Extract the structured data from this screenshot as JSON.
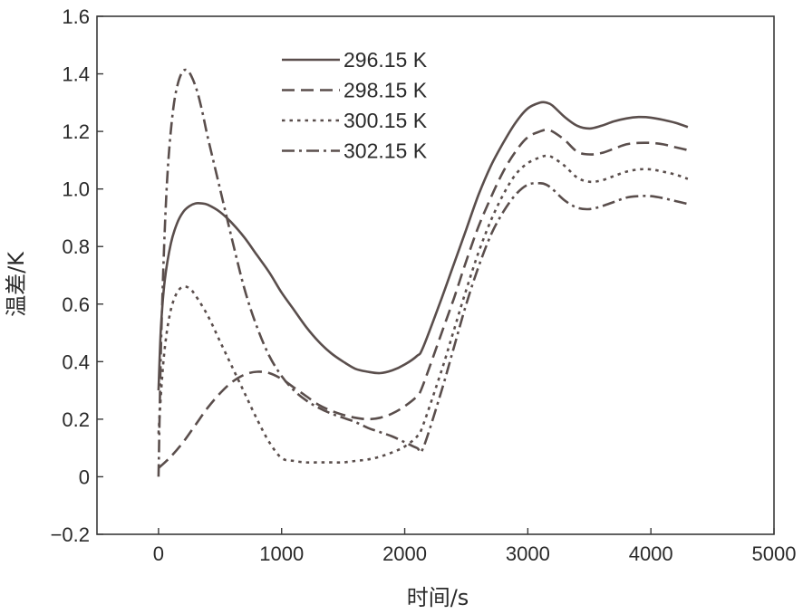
{
  "chart_data": {
    "type": "line",
    "xlabel": "时间/s",
    "ylabel": "温差/K",
    "xlim": [
      -500,
      5000
    ],
    "ylim": [
      -0.2,
      1.6
    ],
    "xticks": [
      0,
      1000,
      2000,
      3000,
      4000,
      5000
    ],
    "yticks": [
      -0.2,
      0,
      0.2,
      0.4,
      0.6,
      0.8,
      1.0,
      1.2,
      1.4,
      1.6
    ],
    "ytick_labels": [
      "−0.2",
      "0",
      "0.2",
      "0.4",
      "0.6",
      "0.8",
      "1.0",
      "1.2",
      "1.4",
      "1.6"
    ],
    "xtick_labels": [
      "0",
      "1000",
      "2000",
      "3000",
      "4000",
      "5000"
    ],
    "grid": false,
    "legend_position": "top-center",
    "series_color": "#5a4e4c",
    "series": [
      {
        "name": "296.15 K",
        "dash": "solid",
        "x": [
          0,
          20,
          50,
          100,
          150,
          200,
          250,
          300,
          350,
          400,
          500,
          600,
          700,
          800,
          900,
          1000,
          1100,
          1200,
          1300,
          1400,
          1500,
          1600,
          1700,
          1800,
          1900,
          2000,
          2100,
          2150,
          2300,
          2400,
          2500,
          2600,
          2700,
          2800,
          2900,
          3000,
          3100,
          3150,
          3200,
          3300,
          3400,
          3500,
          3600,
          3700,
          3800,
          3900,
          4000,
          4100,
          4200,
          4300
        ],
        "y": [
          0.3,
          0.52,
          0.68,
          0.81,
          0.88,
          0.92,
          0.94,
          0.95,
          0.95,
          0.945,
          0.92,
          0.88,
          0.83,
          0.77,
          0.71,
          0.64,
          0.58,
          0.52,
          0.47,
          0.43,
          0.4,
          0.375,
          0.365,
          0.36,
          0.37,
          0.39,
          0.42,
          0.45,
          0.62,
          0.74,
          0.86,
          0.98,
          1.08,
          1.16,
          1.23,
          1.28,
          1.3,
          1.3,
          1.29,
          1.25,
          1.22,
          1.21,
          1.22,
          1.235,
          1.245,
          1.25,
          1.248,
          1.24,
          1.23,
          1.215
        ]
      },
      {
        "name": "298.15 K",
        "dash": "dashed",
        "x": [
          0,
          100,
          200,
          300,
          400,
          500,
          600,
          700,
          800,
          900,
          1000,
          1100,
          1200,
          1300,
          1400,
          1500,
          1600,
          1700,
          1800,
          1900,
          2000,
          2100,
          2150,
          2300,
          2400,
          2500,
          2600,
          2700,
          2800,
          2900,
          3000,
          3100,
          3150,
          3200,
          3300,
          3400,
          3500,
          3600,
          3700,
          3800,
          3900,
          4000,
          4100,
          4200,
          4300
        ],
        "y": [
          0.03,
          0.07,
          0.12,
          0.18,
          0.24,
          0.29,
          0.33,
          0.355,
          0.365,
          0.36,
          0.34,
          0.31,
          0.28,
          0.25,
          0.23,
          0.215,
          0.205,
          0.2,
          0.205,
          0.22,
          0.245,
          0.28,
          0.32,
          0.5,
          0.62,
          0.75,
          0.87,
          0.97,
          1.06,
          1.13,
          1.18,
          1.2,
          1.205,
          1.2,
          1.17,
          1.13,
          1.12,
          1.125,
          1.14,
          1.155,
          1.16,
          1.16,
          1.155,
          1.145,
          1.135
        ]
      },
      {
        "name": "300.15 K",
        "dash": "dotted",
        "x": [
          0,
          30,
          60,
          100,
          150,
          200,
          250,
          300,
          400,
          500,
          600,
          700,
          800,
          900,
          1000,
          1100,
          1200,
          1300,
          1400,
          1500,
          1600,
          1700,
          1800,
          1900,
          2000,
          2100,
          2150,
          2300,
          2400,
          2500,
          2600,
          2700,
          2800,
          2900,
          3000,
          3100,
          3150,
          3200,
          3300,
          3400,
          3500,
          3600,
          3700,
          3800,
          3900,
          4000,
          4100,
          4200,
          4300
        ],
        "y": [
          0.15,
          0.35,
          0.48,
          0.58,
          0.64,
          0.66,
          0.655,
          0.63,
          0.56,
          0.47,
          0.38,
          0.29,
          0.2,
          0.12,
          0.065,
          0.055,
          0.05,
          0.05,
          0.05,
          0.05,
          0.055,
          0.06,
          0.07,
          0.085,
          0.105,
          0.14,
          0.18,
          0.37,
          0.51,
          0.65,
          0.78,
          0.89,
          0.98,
          1.05,
          1.09,
          1.11,
          1.115,
          1.11,
          1.08,
          1.04,
          1.025,
          1.03,
          1.045,
          1.06,
          1.068,
          1.068,
          1.06,
          1.05,
          1.035
        ]
      },
      {
        "name": "302.15 K",
        "dash": "dashdot",
        "x": [
          0,
          20,
          50,
          80,
          120,
          160,
          200,
          240,
          280,
          320,
          360,
          400,
          500,
          600,
          700,
          800,
          900,
          1000,
          1100,
          1200,
          1300,
          1400,
          1500,
          1600,
          1700,
          1800,
          1900,
          2000,
          2100,
          2150,
          2300,
          2400,
          2500,
          2600,
          2700,
          2800,
          2900,
          3000,
          3100,
          3150,
          3200,
          3300,
          3400,
          3500,
          3600,
          3700,
          3800,
          3900,
          4000,
          4100,
          4200,
          4300
        ],
        "y": [
          0.0,
          0.45,
          0.85,
          1.1,
          1.28,
          1.37,
          1.41,
          1.41,
          1.38,
          1.33,
          1.26,
          1.18,
          1.0,
          0.82,
          0.65,
          0.52,
          0.42,
          0.35,
          0.3,
          0.265,
          0.24,
          0.22,
          0.205,
          0.19,
          0.17,
          0.155,
          0.14,
          0.12,
          0.1,
          0.1,
          0.3,
          0.45,
          0.6,
          0.73,
          0.84,
          0.92,
          0.98,
          1.015,
          1.02,
          1.015,
          1.0,
          0.96,
          0.935,
          0.93,
          0.94,
          0.955,
          0.97,
          0.975,
          0.975,
          0.968,
          0.958,
          0.948
        ]
      }
    ]
  }
}
